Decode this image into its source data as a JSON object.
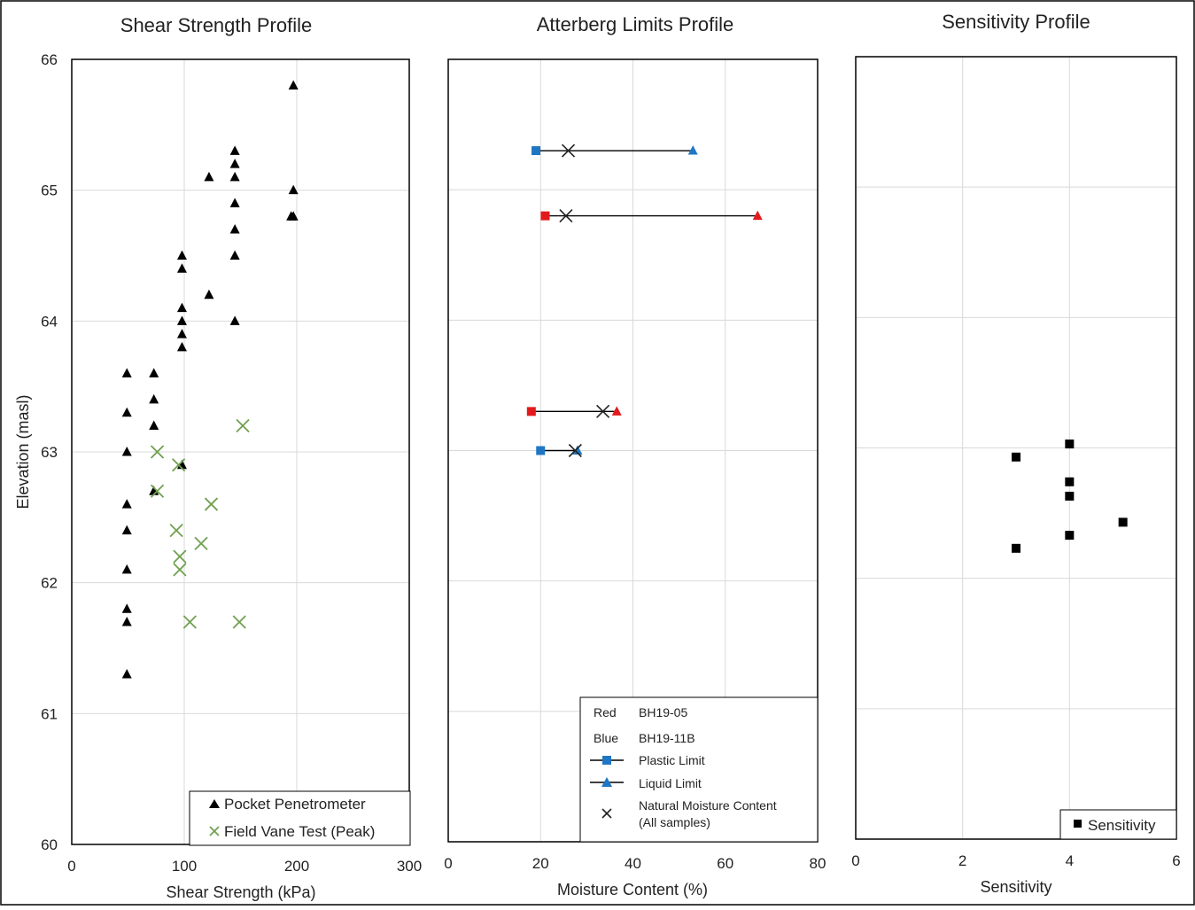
{
  "chart_data": [
    {
      "type": "scatter",
      "title": "Shear Strength Profile",
      "xlabel": "Shear Strength (kPa)",
      "ylabel": "Elevation (masl)",
      "xlim": [
        0,
        300
      ],
      "ylim": [
        60,
        66
      ],
      "xticks": [
        "0",
        "100",
        "200",
        "300"
      ],
      "yticks": [
        "60",
        "61",
        "62",
        "63",
        "64",
        "65",
        "66"
      ],
      "grid": true,
      "legend_position": "bottom-right",
      "series": [
        {
          "name": "Pocket Penetrometer",
          "marker": "triangle",
          "color": "#000000",
          "points": [
            {
              "x": 197,
              "y": 65.8
            },
            {
              "x": 145,
              "y": 65.3
            },
            {
              "x": 145,
              "y": 65.2
            },
            {
              "x": 122,
              "y": 65.1
            },
            {
              "x": 145,
              "y": 65.1
            },
            {
              "x": 197,
              "y": 65.0
            },
            {
              "x": 145,
              "y": 64.9
            },
            {
              "x": 195,
              "y": 64.8
            },
            {
              "x": 197,
              "y": 64.8
            },
            {
              "x": 145,
              "y": 64.7
            },
            {
              "x": 98,
              "y": 64.5
            },
            {
              "x": 145,
              "y": 64.5
            },
            {
              "x": 98,
              "y": 64.4
            },
            {
              "x": 122,
              "y": 64.2
            },
            {
              "x": 98,
              "y": 64.1
            },
            {
              "x": 98,
              "y": 64.0
            },
            {
              "x": 145,
              "y": 64.0
            },
            {
              "x": 98,
              "y": 63.9
            },
            {
              "x": 98,
              "y": 63.8
            },
            {
              "x": 49,
              "y": 63.6
            },
            {
              "x": 73,
              "y": 63.6
            },
            {
              "x": 73,
              "y": 63.4
            },
            {
              "x": 49,
              "y": 63.3
            },
            {
              "x": 73,
              "y": 63.2
            },
            {
              "x": 49,
              "y": 63.0
            },
            {
              "x": 98,
              "y": 62.9
            },
            {
              "x": 73,
              "y": 62.7
            },
            {
              "x": 49,
              "y": 62.6
            },
            {
              "x": 49,
              "y": 62.4
            },
            {
              "x": 49,
              "y": 62.1
            },
            {
              "x": 49,
              "y": 61.8
            },
            {
              "x": 49,
              "y": 61.7
            },
            {
              "x": 49,
              "y": 61.3
            }
          ]
        },
        {
          "name": "Field Vane Test (Peak)",
          "marker": "x",
          "color": "#70a050",
          "points": [
            {
              "x": 152,
              "y": 63.2
            },
            {
              "x": 76,
              "y": 63.0
            },
            {
              "x": 95,
              "y": 62.9
            },
            {
              "x": 76,
              "y": 62.7
            },
            {
              "x": 124,
              "y": 62.6
            },
            {
              "x": 93,
              "y": 62.4
            },
            {
              "x": 115,
              "y": 62.3
            },
            {
              "x": 96,
              "y": 62.2
            },
            {
              "x": 96,
              "y": 62.1
            },
            {
              "x": 105,
              "y": 61.7
            },
            {
              "x": 149,
              "y": 61.7
            }
          ]
        }
      ]
    },
    {
      "type": "line",
      "title": "Atterberg Limits Profile",
      "xlabel": "Moisture Content (%)",
      "xlim": [
        0,
        80
      ],
      "ylim": [
        60,
        66
      ],
      "xticks": [
        "0",
        "20",
        "40",
        "60",
        "80"
      ],
      "grid": true,
      "legend_position": "bottom-right",
      "legend": {
        "color_keys": [
          {
            "label": "Red",
            "value": "BH19-05"
          },
          {
            "label": "Blue",
            "value": "BH19-11B"
          }
        ],
        "plastic_limit": "Plastic Limit",
        "liquid_limit": "Liquid Limit",
        "nmc_line1": "Natural Moisture Content",
        "nmc_line2": "(All samples)"
      },
      "samples": [
        {
          "borehole": "BH19-11B",
          "color": "#1f77c4",
          "elevation": 65.3,
          "plastic_limit": 19,
          "natural_moisture": 26,
          "liquid_limit": 53
        },
        {
          "borehole": "BH19-05",
          "color": "#e31a1c",
          "elevation": 64.8,
          "plastic_limit": 21,
          "natural_moisture": 25.5,
          "liquid_limit": 67
        },
        {
          "borehole": "BH19-05",
          "color": "#e31a1c",
          "elevation": 63.3,
          "plastic_limit": 18,
          "natural_moisture": 33.5,
          "liquid_limit": 36.5
        },
        {
          "borehole": "BH19-11B",
          "color": "#1f77c4",
          "elevation": 63.0,
          "plastic_limit": 20,
          "natural_moisture": 27.5,
          "liquid_limit": 28
        }
      ]
    },
    {
      "type": "scatter",
      "title": "Sensitivity Profile",
      "xlabel": "Sensitivity",
      "xlim": [
        0,
        6
      ],
      "ylim": [
        60,
        66
      ],
      "xticks": [
        "0",
        "2",
        "4",
        "6"
      ],
      "grid": true,
      "legend_position": "bottom-right",
      "series": [
        {
          "name": "Sensitivity",
          "marker": "square",
          "color": "#000000",
          "points": [
            {
              "x": 4,
              "y": 63.03
            },
            {
              "x": 3,
              "y": 62.93
            },
            {
              "x": 4,
              "y": 62.74
            },
            {
              "x": 4,
              "y": 62.63
            },
            {
              "x": 5,
              "y": 62.43
            },
            {
              "x": 4,
              "y": 62.33
            },
            {
              "x": 3,
              "y": 62.23
            }
          ]
        }
      ]
    }
  ]
}
